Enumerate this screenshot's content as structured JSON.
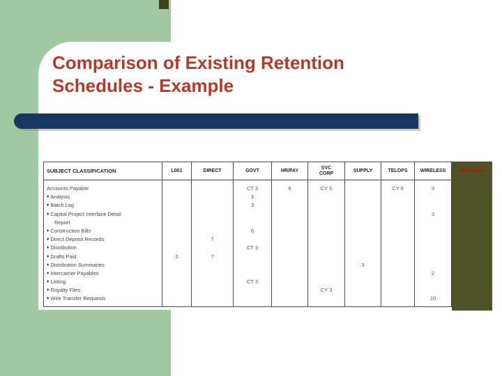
{
  "slide": {
    "title": "Comparison of Existing Retention Schedules - Example"
  },
  "colors": {
    "panel_green": "#a0c9a0",
    "title_red": "#b13a2b",
    "bar_navy": "#17375e",
    "proposed_olive": "#4d5324",
    "accent_olive": "#3e431c",
    "proposed_text_red": "#cc0000",
    "table_border": "#4a4a4a"
  },
  "table": {
    "bullet_glyph": "♦",
    "columns": [
      {
        "key": "subject",
        "label": "SUBJECT CLASSIFICATION"
      },
      {
        "key": "l001",
        "label": "L001"
      },
      {
        "key": "direct",
        "label": "DIRECT"
      },
      {
        "key": "govt",
        "label": "GOVT"
      },
      {
        "key": "hrpay",
        "label": "HR/PAY"
      },
      {
        "key": "svc",
        "label": "SVC CORP"
      },
      {
        "key": "supply",
        "label": "SUPPLY"
      },
      {
        "key": "telops",
        "label": "TELOPS"
      },
      {
        "key": "wireless",
        "label": "WIRELESS"
      },
      {
        "key": "proposed",
        "label": "PROPOSED"
      }
    ],
    "rows": [
      {
        "subject": "Accounts Payable",
        "bullet": false,
        "govt": "CT 3",
        "hrpay": "6",
        "svc": "CY 5",
        "telops": "CY 6",
        "wireless": "3"
      },
      {
        "subject": "Analysis",
        "bullet": true,
        "govt": "3"
      },
      {
        "subject": "Batch Log",
        "bullet": true,
        "govt": "3"
      },
      {
        "subject": "Capital Project Interface Detail",
        "bullet": true,
        "wireless": "3"
      },
      {
        "subject": "Report",
        "bullet": false,
        "indent": true
      },
      {
        "subject": "Construction Bills",
        "bullet": true,
        "govt": "6"
      },
      {
        "subject": "Direct Deposit Records",
        "bullet": true,
        "direct": "7"
      },
      {
        "subject": "Distribution",
        "bullet": true,
        "govt": "CT 3"
      },
      {
        "subject": "Drafts Paid",
        "bullet": true,
        "l001": "3",
        "direct": "7"
      },
      {
        "subject": "Distribution Summaries",
        "bullet": true,
        "supply": "3"
      },
      {
        "subject": "Intercarrier Payables",
        "bullet": true,
        "wireless": "2"
      },
      {
        "subject": "Listing",
        "bullet": true,
        "govt": "CT 3"
      },
      {
        "subject": "Royalty Files",
        "bullet": true,
        "svc": "CY 3"
      },
      {
        "subject": "Wire Transfer Requests",
        "bullet": true,
        "wireless": "10"
      }
    ]
  }
}
